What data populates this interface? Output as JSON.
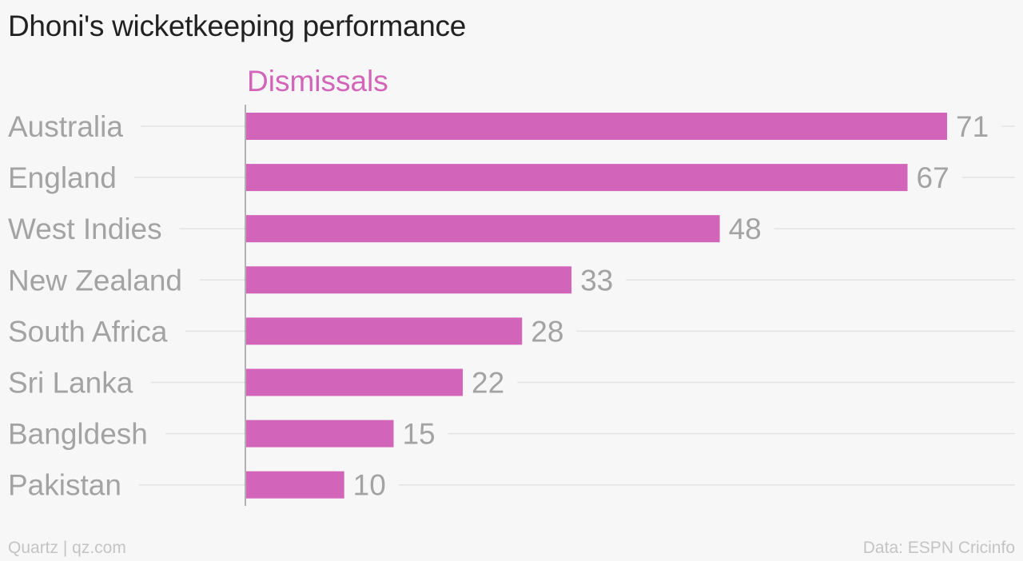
{
  "title": "Dhoni's wicketkeeping performance",
  "footer": {
    "source_left": "Quartz | qz.com",
    "source_right": "Data: ESPN Cricinfo"
  },
  "colors": {
    "bar": "#d264b9",
    "series_label": "#d264b9",
    "category_label": "#a3a3a3",
    "value_label": "#a3a3a3",
    "gridline": "#e3e3e3",
    "axis": "#9a9a9a",
    "title": "#222222",
    "footer": "#c4c4c4"
  },
  "chart_data": {
    "type": "bar",
    "orientation": "horizontal",
    "title": "Dhoni's wicketkeeping performance",
    "categories": [
      "Australia",
      "England",
      "West Indies",
      "New Zealand",
      "South Africa",
      "Sri Lanka",
      "Bangldesh",
      "Pakistan"
    ],
    "series": [
      {
        "name": "Dismissals",
        "values": [
          71,
          67,
          48,
          33,
          28,
          22,
          15,
          10
        ]
      }
    ],
    "xlim": [
      0,
      71
    ],
    "grid": true,
    "data_labels": true
  }
}
